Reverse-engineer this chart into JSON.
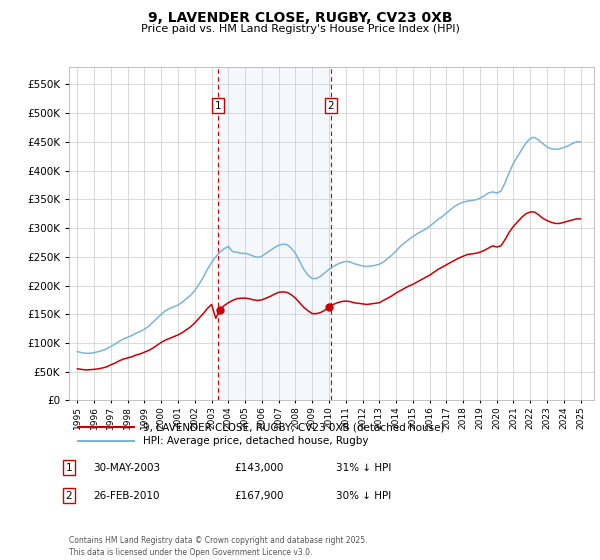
{
  "title": "9, LAVENDER CLOSE, RUGBY, CV23 0XB",
  "subtitle": "Price paid vs. HM Land Registry's House Price Index (HPI)",
  "ylim": [
    0,
    580000
  ],
  "yticks": [
    0,
    50000,
    100000,
    150000,
    200000,
    250000,
    300000,
    350000,
    400000,
    450000,
    500000,
    550000
  ],
  "background_color": "#ffffff",
  "grid_color": "#cccccc",
  "hpi_color": "#7ab4d8",
  "price_color": "#cc0000",
  "vline_color": "#cc0000",
  "marker1_year": 2003.38,
  "marker2_year": 2010.12,
  "legend_price": "9, LAVENDER CLOSE, RUGBY, CV23 0XB (detached house)",
  "legend_hpi": "HPI: Average price, detached house, Rugby",
  "annotation1_label": "1",
  "annotation1_date": "30-MAY-2003",
  "annotation1_price": "£143,000",
  "annotation1_hpi": "31% ↓ HPI",
  "annotation2_label": "2",
  "annotation2_date": "26-FEB-2010",
  "annotation2_price": "£167,900",
  "annotation2_hpi": "30% ↓ HPI",
  "footer": "Contains HM Land Registry data © Crown copyright and database right 2025.\nThis data is licensed under the Open Government Licence v3.0.",
  "hpi_data_x": [
    1995,
    1995.25,
    1995.5,
    1995.75,
    1996,
    1996.25,
    1996.5,
    1996.75,
    1997,
    1997.25,
    1997.5,
    1997.75,
    1998,
    1998.25,
    1998.5,
    1998.75,
    1999,
    1999.25,
    1999.5,
    1999.75,
    2000,
    2000.25,
    2000.5,
    2000.75,
    2001,
    2001.25,
    2001.5,
    2001.75,
    2002,
    2002.25,
    2002.5,
    2002.75,
    2003,
    2003.25,
    2003.5,
    2003.75,
    2004,
    2004.25,
    2004.5,
    2004.75,
    2005,
    2005.25,
    2005.5,
    2005.75,
    2006,
    2006.25,
    2006.5,
    2006.75,
    2007,
    2007.25,
    2007.5,
    2007.75,
    2008,
    2008.25,
    2008.5,
    2008.75,
    2009,
    2009.25,
    2009.5,
    2009.75,
    2010,
    2010.25,
    2010.5,
    2010.75,
    2011,
    2011.25,
    2011.5,
    2011.75,
    2012,
    2012.25,
    2012.5,
    2012.75,
    2013,
    2013.25,
    2013.5,
    2013.75,
    2014,
    2014.25,
    2014.5,
    2014.75,
    2015,
    2015.25,
    2015.5,
    2015.75,
    2016,
    2016.25,
    2016.5,
    2016.75,
    2017,
    2017.25,
    2017.5,
    2017.75,
    2018,
    2018.25,
    2018.5,
    2018.75,
    2019,
    2019.25,
    2019.5,
    2019.75,
    2020,
    2020.25,
    2020.5,
    2020.75,
    2021,
    2021.25,
    2021.5,
    2021.75,
    2022,
    2022.25,
    2022.5,
    2022.75,
    2023,
    2023.25,
    2023.5,
    2023.75,
    2024,
    2024.25,
    2024.5,
    2024.75,
    2025
  ],
  "hpi_data_y": [
    85000,
    83000,
    82000,
    82000,
    83000,
    85000,
    87000,
    90000,
    94000,
    98000,
    103000,
    107000,
    110000,
    113000,
    117000,
    120000,
    124000,
    129000,
    136000,
    143000,
    150000,
    156000,
    160000,
    163000,
    166000,
    171000,
    177000,
    183000,
    191000,
    202000,
    214000,
    228000,
    240000,
    250000,
    258000,
    264000,
    268000,
    259000,
    258000,
    256000,
    256000,
    254000,
    251000,
    249000,
    251000,
    256000,
    261000,
    266000,
    270000,
    272000,
    271000,
    265000,
    256000,
    242000,
    228000,
    218000,
    212000,
    212000,
    216000,
    222000,
    228000,
    233000,
    237000,
    240000,
    242000,
    241000,
    238000,
    236000,
    234000,
    233000,
    234000,
    235000,
    237000,
    241000,
    247000,
    253000,
    260000,
    268000,
    274000,
    280000,
    285000,
    290000,
    294000,
    298000,
    303000,
    309000,
    315000,
    320000,
    326000,
    332000,
    338000,
    342000,
    345000,
    347000,
    348000,
    349000,
    352000,
    356000,
    361000,
    363000,
    361000,
    364000,
    379000,
    397000,
    413000,
    425000,
    437000,
    448000,
    456000,
    458000,
    453000,
    447000,
    441000,
    438000,
    437000,
    438000,
    440000,
    443000,
    447000,
    450000,
    450000
  ],
  "price_data_x": [
    1995,
    1995.25,
    1995.5,
    1995.75,
    1996,
    1996.25,
    1996.5,
    1996.75,
    1997,
    1997.25,
    1997.5,
    1997.75,
    1998,
    1998.25,
    1998.5,
    1998.75,
    1999,
    1999.25,
    1999.5,
    1999.75,
    2000,
    2000.25,
    2000.5,
    2000.75,
    2001,
    2001.25,
    2001.5,
    2001.75,
    2002,
    2002.25,
    2002.5,
    2002.75,
    2003,
    2003.25,
    2003.5,
    2003.75,
    2004,
    2004.25,
    2004.5,
    2004.75,
    2005,
    2005.25,
    2005.5,
    2005.75,
    2006,
    2006.25,
    2006.5,
    2006.75,
    2007,
    2007.25,
    2007.5,
    2007.75,
    2008,
    2008.25,
    2008.5,
    2008.75,
    2009,
    2009.25,
    2009.5,
    2009.75,
    2010,
    2010.25,
    2010.5,
    2010.75,
    2011,
    2011.25,
    2011.5,
    2011.75,
    2012,
    2012.25,
    2012.5,
    2012.75,
    2013,
    2013.25,
    2013.5,
    2013.75,
    2014,
    2014.25,
    2014.5,
    2014.75,
    2015,
    2015.25,
    2015.5,
    2015.75,
    2016,
    2016.25,
    2016.5,
    2016.75,
    2017,
    2017.25,
    2017.5,
    2017.75,
    2018,
    2018.25,
    2018.5,
    2018.75,
    2019,
    2019.25,
    2019.5,
    2019.75,
    2020,
    2020.25,
    2020.5,
    2020.75,
    2021,
    2021.25,
    2021.5,
    2021.75,
    2022,
    2022.25,
    2022.5,
    2022.75,
    2023,
    2023.25,
    2023.5,
    2023.75,
    2024,
    2024.25,
    2024.5,
    2024.75,
    2025
  ],
  "price_data_y": [
    55000,
    54000,
    53000,
    53500,
    54000,
    55000,
    56500,
    58500,
    62000,
    65000,
    69000,
    72000,
    74000,
    76000,
    79000,
    81000,
    84000,
    87000,
    91000,
    96000,
    101000,
    105000,
    108000,
    111000,
    114000,
    118000,
    123000,
    128000,
    135000,
    143000,
    151000,
    160000,
    167000,
    143000,
    158000,
    165000,
    170000,
    174000,
    177000,
    178000,
    178000,
    177000,
    175000,
    174000,
    175000,
    178000,
    181000,
    185000,
    188000,
    189000,
    188000,
    184000,
    178000,
    170000,
    162000,
    156000,
    151000,
    151000,
    153000,
    157000,
    162000,
    167000,
    170000,
    172000,
    173000,
    172000,
    170000,
    169000,
    168000,
    167000,
    168000,
    169000,
    170000,
    174000,
    178000,
    182000,
    187000,
    191000,
    195000,
    199000,
    202000,
    206000,
    210000,
    214000,
    218000,
    223000,
    228000,
    232000,
    236000,
    240000,
    244000,
    248000,
    251000,
    254000,
    255000,
    256000,
    258000,
    261000,
    265000,
    269000,
    267000,
    269000,
    280000,
    293000,
    303000,
    311000,
    319000,
    325000,
    328000,
    328000,
    323000,
    317000,
    313000,
    310000,
    308000,
    308000,
    310000,
    312000,
    314000,
    316000,
    316000
  ]
}
